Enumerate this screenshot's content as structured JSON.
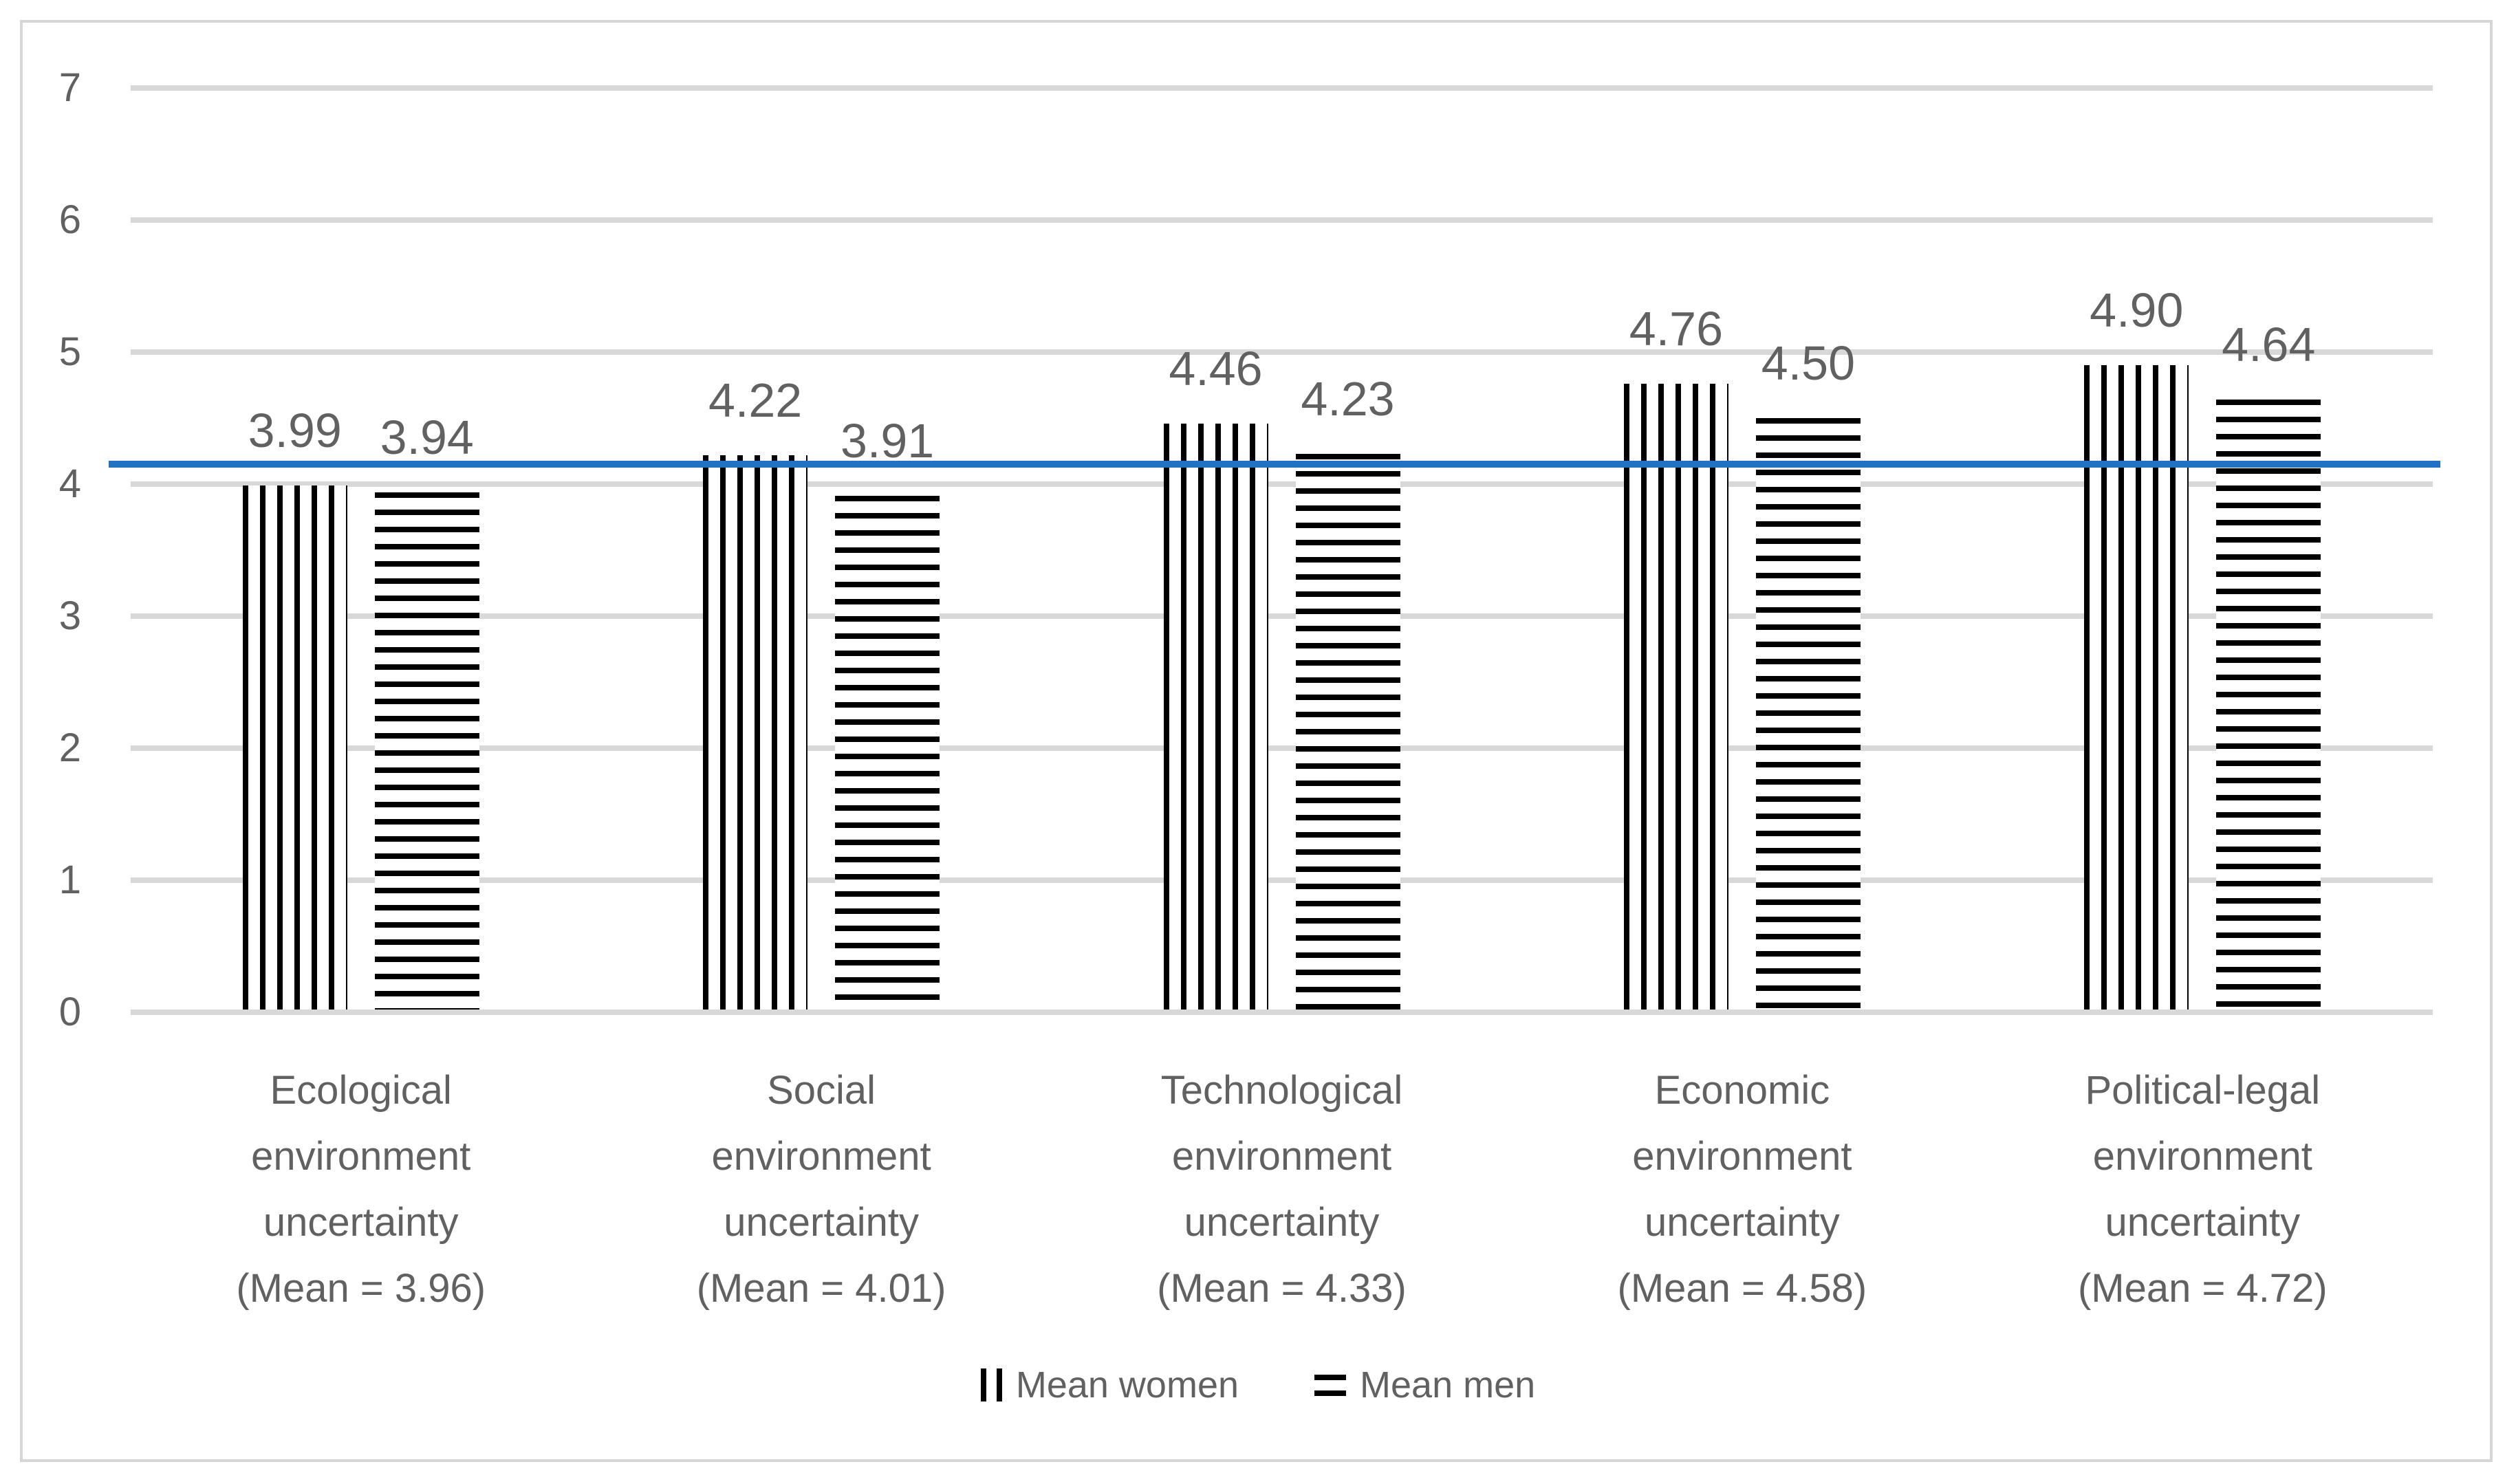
{
  "chart_data": {
    "type": "bar",
    "title": "",
    "xlabel": "",
    "ylabel": "",
    "categories": [
      {
        "lines": [
          "Ecological",
          "environment",
          "uncertainty",
          "(Mean = 3.96)"
        ],
        "mean": 3.96
      },
      {
        "lines": [
          "Social",
          "environment",
          "uncertainty",
          "(Mean = 4.01)"
        ],
        "mean": 4.01
      },
      {
        "lines": [
          "Technological",
          "environment",
          "uncertainty",
          "(Mean = 4.33)"
        ],
        "mean": 4.33
      },
      {
        "lines": [
          "Economic",
          "environment",
          "uncertainty",
          "(Mean = 4.58)"
        ],
        "mean": 4.58
      },
      {
        "lines": [
          "Political-legal",
          "environment",
          "uncertainty",
          "(Mean = 4.72)"
        ],
        "mean": 4.72
      }
    ],
    "series": [
      {
        "name": "Mean women",
        "pattern": "vertical-stripes",
        "values": [
          3.99,
          4.22,
          4.46,
          4.76,
          4.9
        ]
      },
      {
        "name": "Mean men",
        "pattern": "horizontal-stripes",
        "values": [
          3.94,
          3.91,
          4.23,
          4.5,
          4.64
        ]
      }
    ],
    "data_labels": [
      [
        "3.99",
        "4.22",
        "4.46",
        "4.76",
        "4.90"
      ],
      [
        "3.94",
        "3.91",
        "4.23",
        "4.50",
        "4.64"
      ]
    ],
    "y_axis": {
      "min": 0,
      "max": 7,
      "tick_step": 1,
      "ticks": [
        0,
        1,
        2,
        3,
        4,
        5,
        6,
        7
      ]
    },
    "reference_line": {
      "value": 4.15,
      "color": "#2272c3"
    },
    "grid": true,
    "legend_position": "bottom",
    "colors": {
      "stripe": "#000000",
      "text": "#616161",
      "gridline": "#d8d8d8",
      "reference_line": "#2272c3",
      "frame_border": "#d6d6d6",
      "background": "#ffffff"
    }
  }
}
